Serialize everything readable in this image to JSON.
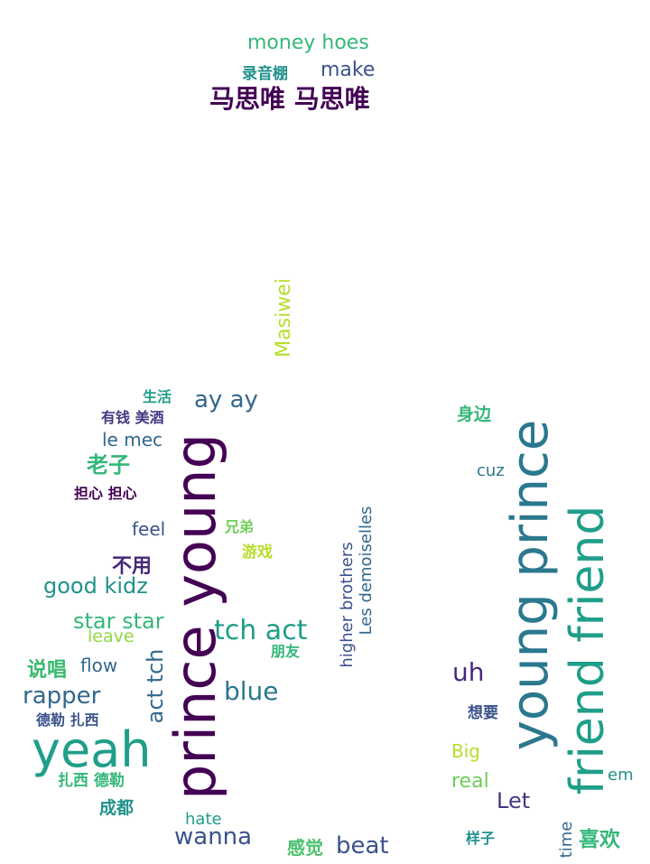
{
  "words": [
    {
      "text": "money hoes",
      "color": "#35b779"
    },
    {
      "text": "录音棚",
      "color": "#21918c"
    },
    {
      "text": "make",
      "color": "#3b528b"
    },
    {
      "text": "马思唯 马思唯",
      "color": "#440154"
    },
    {
      "text": "Masiwei",
      "color": "#b5de2b"
    },
    {
      "text": "生活",
      "color": "#1f9e89"
    },
    {
      "text": "ay ay",
      "color": "#31688e"
    },
    {
      "text": "有钱 美酒",
      "color": "#443983"
    },
    {
      "text": "le mec",
      "color": "#31688e"
    },
    {
      "text": "老子",
      "color": "#35b779"
    },
    {
      "text": "担心 担心",
      "color": "#440154"
    },
    {
      "text": "prince young",
      "color": "#440154"
    },
    {
      "text": "feel",
      "color": "#3b528b"
    },
    {
      "text": "兄弟",
      "color": "#6ece58"
    },
    {
      "text": "游戏",
      "color": "#b5de2b"
    },
    {
      "text": "不用",
      "color": "#482878"
    },
    {
      "text": "good kidz",
      "color": "#21918c"
    },
    {
      "text": "star star",
      "color": "#35b779"
    },
    {
      "text": "leave",
      "color": "#90d743"
    },
    {
      "text": "tch act",
      "color": "#1f9e89"
    },
    {
      "text": "朋友",
      "color": "#35b779"
    },
    {
      "text": "说唱",
      "color": "#3ab96e"
    },
    {
      "text": "flow",
      "color": "#31688e"
    },
    {
      "text": "act tch",
      "color": "#31688e"
    },
    {
      "text": "blue",
      "color": "#2a788e"
    },
    {
      "text": "rapper",
      "color": "#31688e"
    },
    {
      "text": "德勒 扎西",
      "color": "#3b528b"
    },
    {
      "text": "yeah",
      "color": "#1f9e89"
    },
    {
      "text": "扎西 德勒",
      "color": "#35b779"
    },
    {
      "text": "成都",
      "color": "#21918c"
    },
    {
      "text": "hate",
      "color": "#1f9e89"
    },
    {
      "text": "wanna",
      "color": "#3b528b"
    },
    {
      "text": "感觉",
      "color": "#4ac16d"
    },
    {
      "text": "beat",
      "color": "#3b528b"
    },
    {
      "text": "higher brothers",
      "color": "#3b528b"
    },
    {
      "text": "Les demoiselles",
      "color": "#31688e"
    },
    {
      "text": "身边",
      "color": "#35b779"
    },
    {
      "text": "cuz",
      "color": "#2a788e"
    },
    {
      "text": "young prince",
      "color": "#2a788e"
    },
    {
      "text": "friend friend",
      "color": "#1f9e89"
    },
    {
      "text": "uh",
      "color": "#482878"
    },
    {
      "text": "想要",
      "color": "#3b528b"
    },
    {
      "text": "Big",
      "color": "#b5de2b"
    },
    {
      "text": "real",
      "color": "#6ece58"
    },
    {
      "text": "Let",
      "color": "#443983"
    },
    {
      "text": "em",
      "color": "#21918c"
    },
    {
      "text": "样子",
      "color": "#21918c"
    },
    {
      "text": "time",
      "color": "#31688e"
    },
    {
      "text": "喜欢",
      "color": "#35b779"
    }
  ]
}
